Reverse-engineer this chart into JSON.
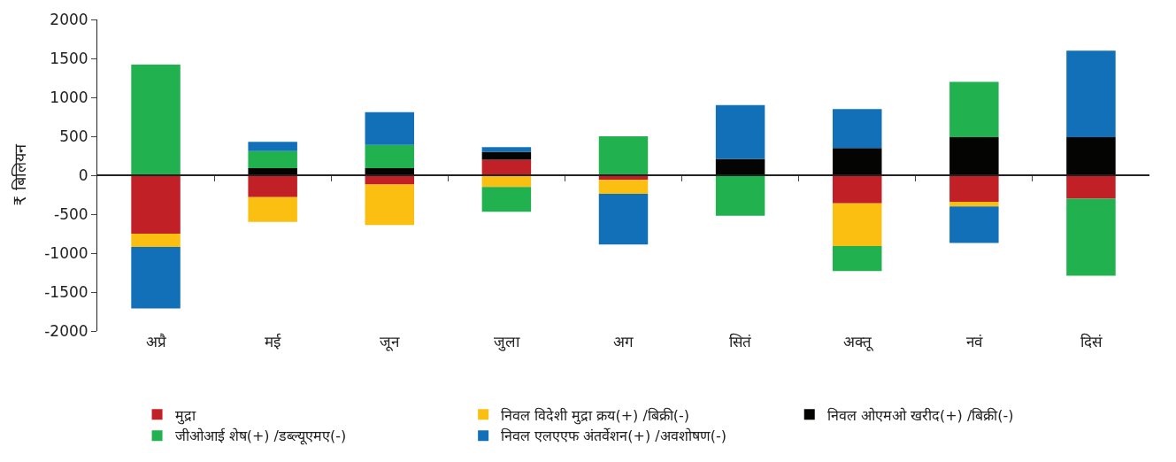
{
  "chart_data": {
    "type": "bar",
    "stacked": true,
    "ylabel": "₹ बिलियन",
    "categories": [
      "अप्रै",
      "मई",
      "जून",
      "जुला",
      "अग",
      "सितं",
      "अक्तू",
      "नवं",
      "दिसं"
    ],
    "series": [
      {
        "name": "मुद्रा",
        "color": "#c02026",
        "values": [
          -750,
          -280,
          -120,
          200,
          -60,
          0,
          -360,
          -340,
          -300
        ]
      },
      {
        "name": "निवल विदेशी मुद्रा क्रय(+) /बिक्री(-)",
        "color": "#fbbf12",
        "values": [
          -170,
          -320,
          -520,
          -150,
          -180,
          0,
          -550,
          -60,
          0
        ]
      },
      {
        "name": "निवल ओएमओ खरीद(+) /बिक्री(-)",
        "color": "#040403",
        "values": [
          0,
          90,
          90,
          100,
          0,
          210,
          350,
          490,
          490
        ]
      },
      {
        "name": "जीओआई शेष(+) /डब्ल्यूएमए(-)",
        "color": "#21b14f",
        "values": [
          1420,
          220,
          300,
          -320,
          500,
          -520,
          -320,
          710,
          -990
        ]
      },
      {
        "name": "निवल एलएएफ अंतर्वेशन(+) /अवशोषण(-)",
        "color": "#1270b8",
        "values": [
          -790,
          120,
          420,
          60,
          -650,
          690,
          500,
          -470,
          1110
        ]
      }
    ],
    "ylim": [
      -2000,
      2000
    ],
    "yticks": [
      -2000,
      -1500,
      -1000,
      -500,
      0,
      500,
      1000,
      1500,
      2000
    ],
    "legend": "bottom"
  }
}
